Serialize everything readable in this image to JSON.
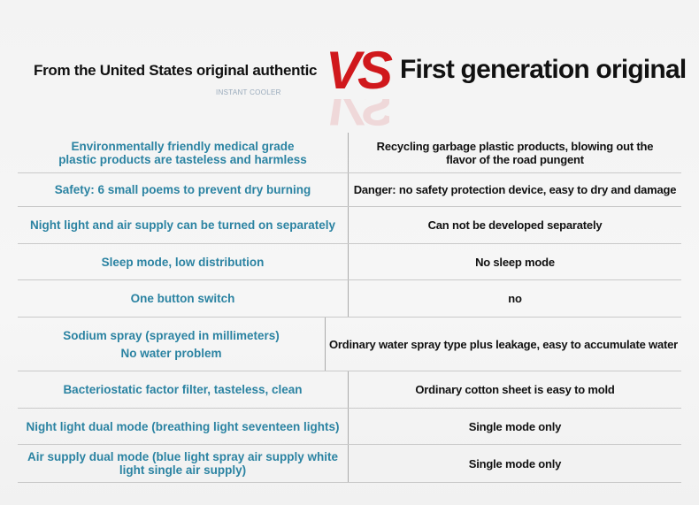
{
  "header": {
    "left_title": "From the United States original authentic",
    "left_subtitle": "INSTANT COOLER",
    "vs": "VS",
    "right_title": "First generation original"
  },
  "rows": [
    {
      "left": [
        "Environmentally friendly medical grade",
        "plastic products are tasteless and harmless"
      ],
      "right": [
        "Recycling garbage plastic products, blowing out the",
        "flavor of the road pungent"
      ]
    },
    {
      "left": [
        "Safety: 6 small poems to prevent dry burning"
      ],
      "right": [
        "Danger: no safety protection device, easy to dry and damage"
      ]
    },
    {
      "left": [
        "Night light and air supply can be turned on separately"
      ],
      "right": [
        "Can not be developed separately"
      ]
    },
    {
      "left": [
        "Sleep mode, low distribution"
      ],
      "right": [
        "No sleep mode"
      ]
    },
    {
      "left": [
        "One button switch"
      ],
      "right": [
        "no"
      ]
    },
    {
      "left": [
        "Sodium spray (sprayed in millimeters)",
        "No water problem"
      ],
      "right": [
        "Ordinary water spray type plus leakage, easy to accumulate water"
      ]
    },
    {
      "left": [
        "Bacteriostatic factor filter, tasteless, clean"
      ],
      "right": [
        "Ordinary cotton sheet is easy to mold"
      ]
    },
    {
      "left": [
        "Night light dual mode (breathing light seventeen lights)"
      ],
      "right": [
        "Single mode only"
      ]
    },
    {
      "left": [
        "Air supply dual mode (blue light spray air supply white",
        "light single air supply)"
      ],
      "right": [
        "Single mode only"
      ]
    }
  ],
  "colors": {
    "left_text": "#2b83a2",
    "vs": "#d0181c",
    "right_text": "#111111"
  }
}
